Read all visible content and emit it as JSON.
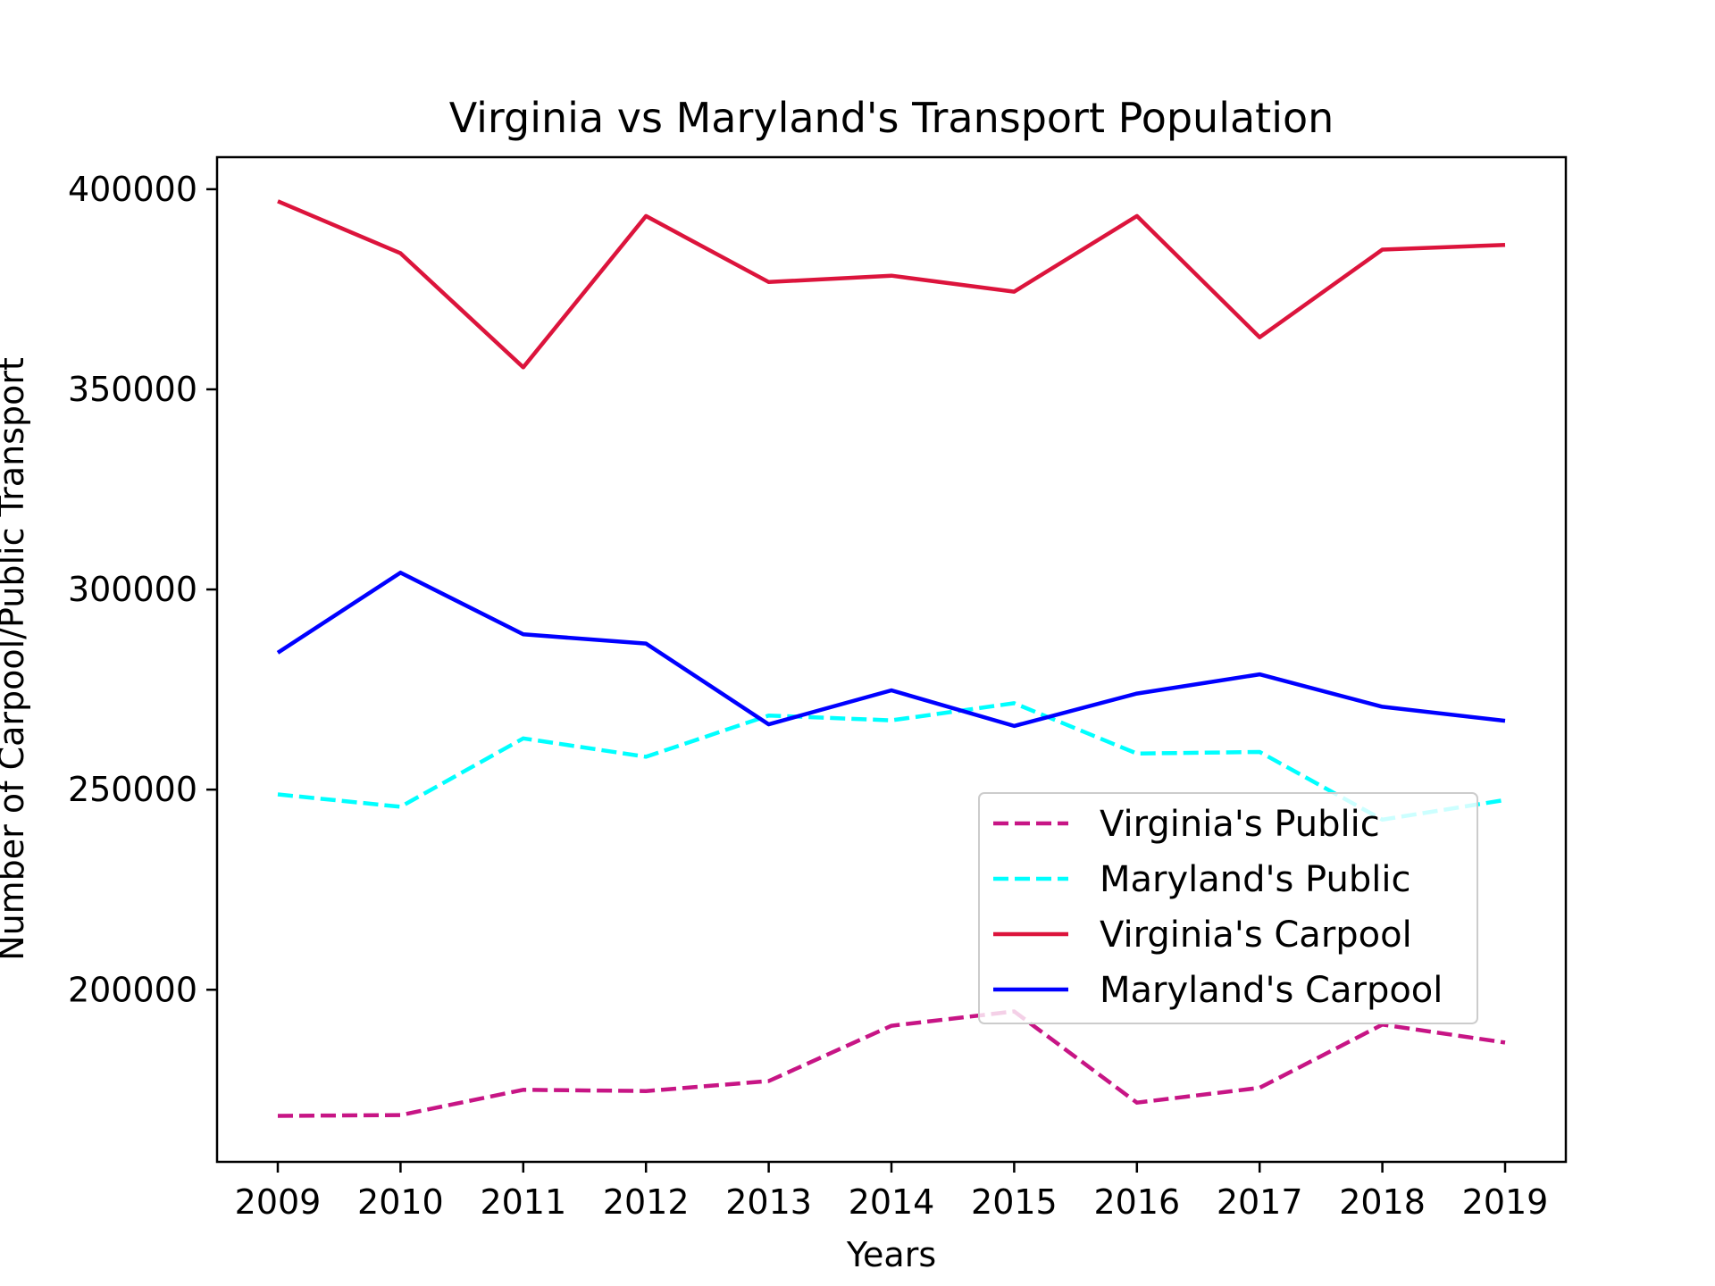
{
  "chart_data": {
    "type": "line",
    "title": "Virginia vs Maryland's Transport Population",
    "xlabel": "Years",
    "ylabel": "Number of Carpool/Public Transport",
    "x": [
      2009,
      2010,
      2011,
      2012,
      2013,
      2014,
      2015,
      2016,
      2017,
      2018,
      2019
    ],
    "xticks": [
      "2009",
      "2010",
      "2011",
      "2012",
      "2013",
      "2014",
      "2015",
      "2016",
      "2017",
      "2018",
      "2019"
    ],
    "yticks": [
      "200000",
      "250000",
      "300000",
      "350000",
      "400000"
    ],
    "ylim": [
      157000,
      408000
    ],
    "grid": false,
    "legend_position": "center-right",
    "series": [
      {
        "name": "Virginia's Public",
        "color": "#c71585",
        "linestyle": "dashed",
        "values": [
          168500,
          168700,
          175000,
          174700,
          177200,
          191000,
          194600,
          171800,
          175500,
          191300,
          186800
        ]
      },
      {
        "name": "Maryland's Public",
        "color": "#00ffff",
        "linestyle": "dashed",
        "values": [
          248800,
          245700,
          262800,
          258200,
          268500,
          267300,
          271600,
          259000,
          259400,
          242500,
          247400
        ]
      },
      {
        "name": "Virginia's Carpool",
        "color": "#dc143c",
        "linestyle": "solid",
        "values": [
          397000,
          384000,
          355500,
          393300,
          376800,
          378400,
          374400,
          393300,
          363000,
          384900,
          386100
        ]
      },
      {
        "name": "Maryland's Carpool",
        "color": "#0000ff",
        "linestyle": "solid",
        "values": [
          284200,
          304200,
          288800,
          286500,
          266300,
          274800,
          265900,
          274000,
          278800,
          270700,
          267200
        ]
      }
    ]
  }
}
